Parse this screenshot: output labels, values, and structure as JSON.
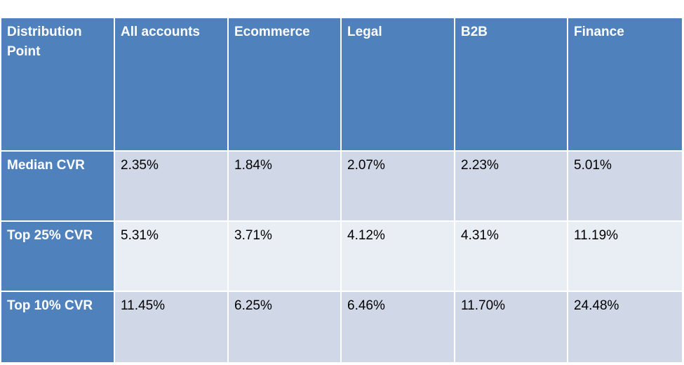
{
  "chart_data": {
    "type": "table",
    "columns": [
      "Distribution Point",
      "All accounts",
      "Ecommerce",
      "Legal",
      "B2B",
      "Finance"
    ],
    "rows": [
      {
        "label": "Median CVR",
        "values": [
          "2.35%",
          "1.84%",
          "2.07%",
          "2.23%",
          "5.01%"
        ]
      },
      {
        "label": "Top 25% CVR",
        "values": [
          "5.31%",
          "3.71%",
          "4.12%",
          "4.31%",
          "11.19%"
        ]
      },
      {
        "label": "Top 10% CVR",
        "values": [
          "11.45%",
          "6.25%",
          "6.46%",
          "11.70%",
          "24.48%"
        ]
      }
    ]
  },
  "colors": {
    "header_fill": "#4f81bd",
    "header_text": "#ffffff",
    "band_dark": "#d0d8e8",
    "band_light": "#e9edf4"
  }
}
